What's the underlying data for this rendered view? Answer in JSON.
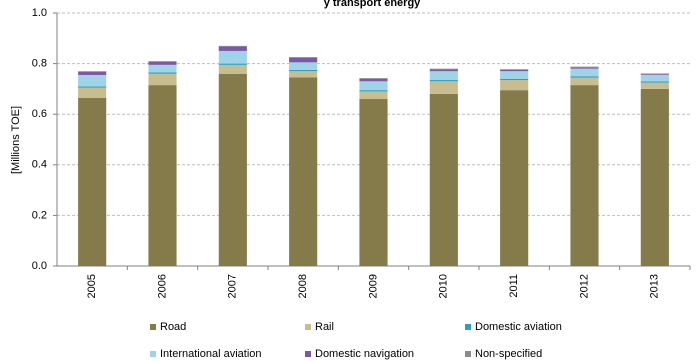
{
  "chart_data": {
    "type": "stacked-bar",
    "title": "y transport energy",
    "y_label": "[Millions TOE]",
    "categories": [
      "2005",
      "2006",
      "2007",
      "2008",
      "2009",
      "2010",
      "2011",
      "2012",
      "2013"
    ],
    "series": [
      {
        "name": "Road",
        "color": "#857a4a",
        "values": [
          0.665,
          0.715,
          0.76,
          0.745,
          0.66,
          0.68,
          0.695,
          0.715,
          0.7
        ]
      },
      {
        "name": "Rail",
        "color": "#c8bd8e",
        "values": [
          0.04,
          0.045,
          0.035,
          0.025,
          0.03,
          0.05,
          0.04,
          0.03,
          0.025
        ]
      },
      {
        "name": "Domestic aviation",
        "color": "#2e9fbf",
        "values": [
          0.005,
          0.005,
          0.005,
          0.005,
          0.005,
          0.005,
          0.005,
          0.005,
          0.005
        ]
      },
      {
        "name": "International aviation",
        "color": "#9fd3e8",
        "values": [
          0.045,
          0.03,
          0.05,
          0.03,
          0.035,
          0.035,
          0.03,
          0.03,
          0.025
        ]
      },
      {
        "name": "Domestic navigation",
        "color": "#7a5aa5",
        "values": [
          0.012,
          0.012,
          0.018,
          0.02,
          0.01,
          0.007,
          0.005,
          0.005,
          0.003
        ]
      },
      {
        "name": "Non-specified",
        "color": "#8c8c8c",
        "values": [
          0.003,
          0.003,
          0.002,
          0.0,
          0.003,
          0.003,
          0.003,
          0.003,
          0.003
        ]
      }
    ],
    "ylim": [
      0,
      1
    ],
    "yticks": [
      {
        "value": 0,
        "label": "0.0"
      },
      0.2,
      0.4,
      0.6,
      0.8,
      {
        "value": 1,
        "label": "1.0"
      }
    ],
    "grid": true
  }
}
